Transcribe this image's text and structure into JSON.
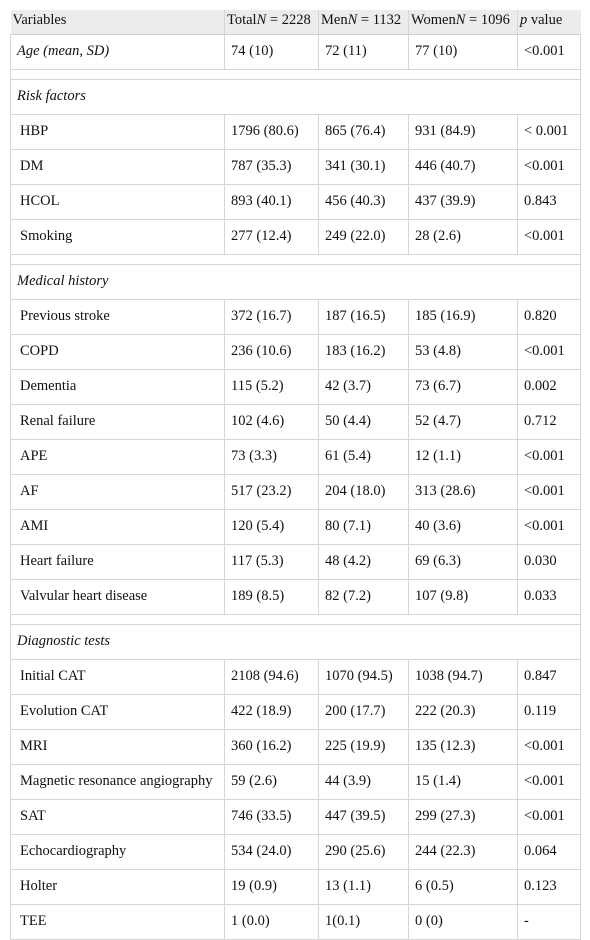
{
  "header": {
    "variables": "Variables",
    "total": {
      "pre": "Total",
      "n": "N",
      "post": " = 2228"
    },
    "men": {
      "pre": "Men",
      "n": "N",
      "post": " = 1132"
    },
    "women": {
      "pre": "Women",
      "n": "N",
      "post": " = 1096"
    },
    "pvalue": {
      "p": "p",
      "post": " value"
    }
  },
  "age": {
    "label": "Age (mean, SD)",
    "total": "74 (10)",
    "men": "72 (11)",
    "women": "77 (10)",
    "p": "<0.001"
  },
  "sections": [
    {
      "title": "Risk factors",
      "rows": [
        {
          "label": "HBP",
          "total": "1796 (80.6)",
          "men": "865 (76.4)",
          "women": "931 (84.9)",
          "p": "< 0.001"
        },
        {
          "label": "DM",
          "total": "787 (35.3)",
          "men": "341 (30.1)",
          "women": "446 (40.7)",
          "p": "<0.001"
        },
        {
          "label": "HCOL",
          "total": "893 (40.1)",
          "men": "456 (40.3)",
          "women": "437 (39.9)",
          "p": "0.843"
        },
        {
          "label": "Smoking",
          "total": "277 (12.4)",
          "men": "249 (22.0)",
          "women": "28 (2.6)",
          "p": "<0.001"
        }
      ]
    },
    {
      "title": "Medical history",
      "rows": [
        {
          "label": "Previous stroke",
          "total": "372 (16.7)",
          "men": "187 (16.5)",
          "women": "185 (16.9)",
          "p": "0.820"
        },
        {
          "label": "COPD",
          "total": "236 (10.6)",
          "men": "183 (16.2)",
          "women": "53 (4.8)",
          "p": "<0.001"
        },
        {
          "label": "Dementia",
          "total": "115 (5.2)",
          "men": "42 (3.7)",
          "women": "73 (6.7)",
          "p": "0.002"
        },
        {
          "label": "Renal failure",
          "total": "102 (4.6)",
          "men": "50 (4.4)",
          "women": "52 (4.7)",
          "p": "0.712"
        },
        {
          "label": "APE",
          "total": "73 (3.3)",
          "men": "61 (5.4)",
          "women": "12 (1.1)",
          "p": "<0.001"
        },
        {
          "label": "AF",
          "total": "517 (23.2)",
          "men": "204 (18.0)",
          "women": "313 (28.6)",
          "p": "<0.001"
        },
        {
          "label": "AMI",
          "total": "120 (5.4)",
          "men": "80 (7.1)",
          "women": "40 (3.6)",
          "p": "<0.001"
        },
        {
          "label": "Heart failure",
          "total": "117 (5.3)",
          "men": "48 (4.2)",
          "women": "69 (6.3)",
          "p": "0.030"
        },
        {
          "label": "Valvular heart disease",
          "total": "189 (8.5)",
          "men": "82 (7.2)",
          "women": "107 (9.8)",
          "p": "0.033"
        }
      ]
    },
    {
      "title": "Diagnostic tests",
      "rows": [
        {
          "label": "Initial CAT",
          "total": "2108 (94.6)",
          "men": "1070 (94.5)",
          "women": "1038 (94.7)",
          "p": "0.847"
        },
        {
          "label": "Evolution CAT",
          "total": "422 (18.9)",
          "men": "200 (17.7)",
          "women": "222 (20.3)",
          "p": "0.119"
        },
        {
          "label": "MRI",
          "total": "360 (16.2)",
          "men": "225 (19.9)",
          "women": "135 (12.3)",
          "p": "<0.001"
        },
        {
          "label": "Magnetic resonance angiography",
          "total": "59 (2.6)",
          "men": "44 (3.9)",
          "women": "15 (1.4)",
          "p": "<0.001"
        },
        {
          "label": "SAT",
          "total": "746 (33.5)",
          "men": "447 (39.5)",
          "women": "299 (27.3)",
          "p": "<0.001"
        },
        {
          "label": "Echocardiography",
          "total": "534 (24.0)",
          "men": "290 (25.6)",
          "women": "244 (22.3)",
          "p": "0.064"
        },
        {
          "label": "Holter",
          "total": "19 (0.9)",
          "men": "13 (1.1)",
          "women": "6 (0.5)",
          "p": "0.123"
        },
        {
          "label": "TEE",
          "total": "1 (0.0)",
          "men": "1(0.1)",
          "women": "0 (0)",
          "p": "-"
        }
      ]
    }
  ]
}
